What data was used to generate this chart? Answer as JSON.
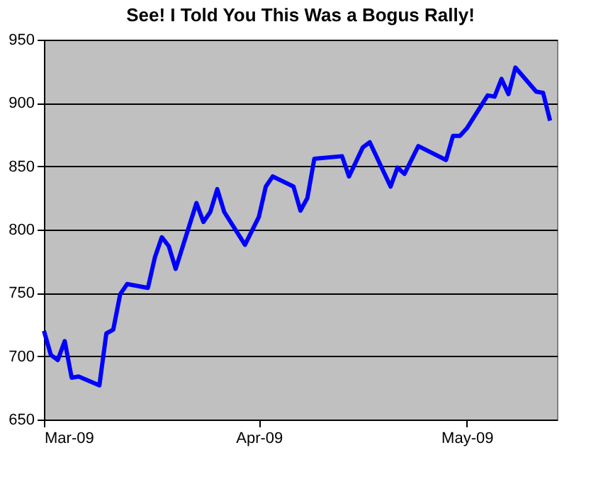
{
  "chart_data": {
    "type": "line",
    "title": "See! I Told You This Was a Bogus Rally!",
    "x": [
      "2009-03-01",
      "2009-03-02",
      "2009-03-03",
      "2009-03-04",
      "2009-03-05",
      "2009-03-06",
      "2009-03-09",
      "2009-03-10",
      "2009-03-11",
      "2009-03-12",
      "2009-03-13",
      "2009-03-16",
      "2009-03-17",
      "2009-03-18",
      "2009-03-19",
      "2009-03-20",
      "2009-03-23",
      "2009-03-24",
      "2009-03-25",
      "2009-03-26",
      "2009-03-27",
      "2009-03-30",
      "2009-04-01",
      "2009-04-02",
      "2009-04-03",
      "2009-04-06",
      "2009-04-07",
      "2009-04-08",
      "2009-04-09",
      "2009-04-13",
      "2009-04-14",
      "2009-04-16",
      "2009-04-17",
      "2009-04-20",
      "2009-04-21",
      "2009-04-22",
      "2009-04-24",
      "2009-04-28",
      "2009-04-29",
      "2009-04-30",
      "2009-05-01",
      "2009-05-04",
      "2009-05-05",
      "2009-05-06",
      "2009-05-07",
      "2009-05-08",
      "2009-05-11",
      "2009-05-12",
      "2009-05-13"
    ],
    "series": [
      {
        "color": "#0000ff",
        "values": [
          720,
          701,
          697,
          712,
          683,
          684,
          677,
          718,
          721,
          749,
          757,
          754,
          778,
          794,
          787,
          769,
          821,
          806,
          814,
          832,
          814,
          788,
          810,
          834,
          842,
          834,
          815,
          825,
          856,
          858,
          842,
          865,
          869,
          834,
          849,
          844,
          866,
          855,
          874,
          874,
          880,
          906,
          905,
          919,
          907,
          928,
          909,
          908,
          886
        ]
      }
    ],
    "xlim": [
      "2009-03-01",
      "2009-05-14"
    ],
    "xticks": [
      {
        "value": "2009-03-01",
        "label": "Mar-09"
      },
      {
        "value": "2009-04-01",
        "label": "Apr-09"
      },
      {
        "value": "2009-05-01",
        "label": "May-09"
      }
    ],
    "ylim": [
      650,
      950
    ],
    "yticks": [
      650,
      700,
      750,
      800,
      850,
      900,
      950
    ],
    "grid": "y",
    "legend": false,
    "marker": "none",
    "line_style": "solid"
  }
}
